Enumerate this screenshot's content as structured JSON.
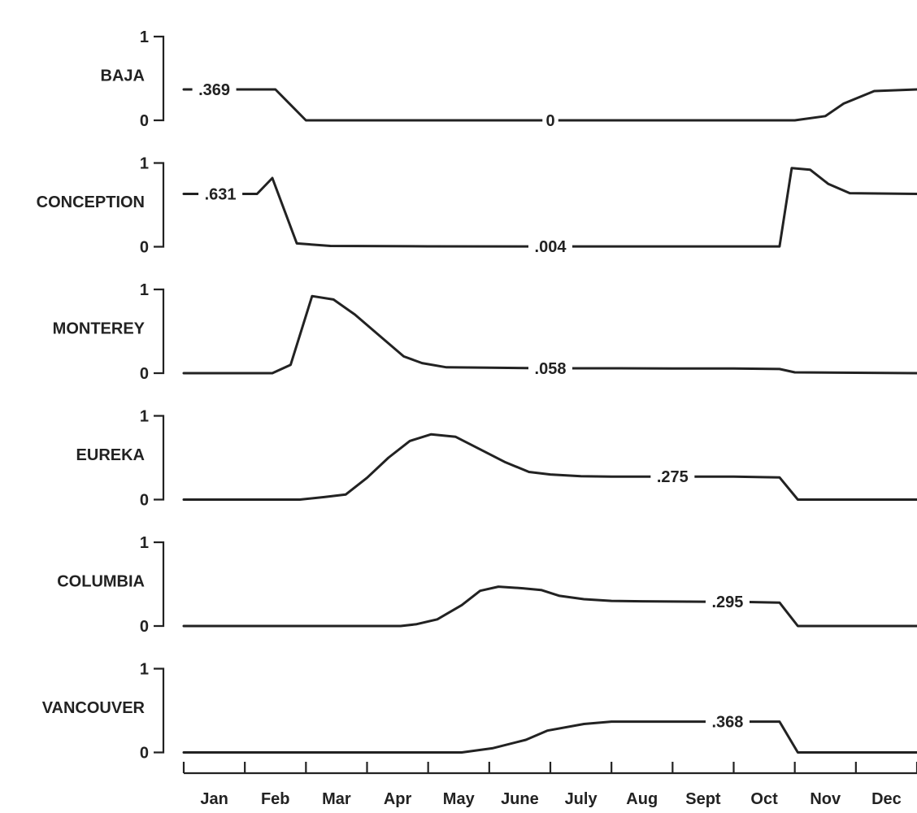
{
  "chart_data": {
    "type": "line",
    "y_ticks": [
      "0",
      "1"
    ],
    "ylim": [
      0,
      1
    ],
    "months": [
      "Jan",
      "Feb",
      "Mar",
      "Apr",
      "May",
      "June",
      "July",
      "Aug",
      "Sept",
      "Oct",
      "Nov",
      "Dec"
    ],
    "series": [
      {
        "name": "BAJA",
        "label": ".369",
        "label_text": ".369",
        "label_month": 0.5,
        "label2_text": "0",
        "label2_month": 6,
        "points": [
          [
            0,
            0.369
          ],
          [
            0.5,
            0.369
          ],
          [
            1,
            0.369
          ],
          [
            1.5,
            0.369
          ],
          [
            2,
            0
          ],
          [
            3,
            0
          ],
          [
            4,
            0
          ],
          [
            5,
            0
          ],
          [
            6,
            0
          ],
          [
            7,
            0
          ],
          [
            8,
            0
          ],
          [
            9,
            0
          ],
          [
            10,
            0
          ],
          [
            10.5,
            0.05
          ],
          [
            10.8,
            0.2
          ],
          [
            11.3,
            0.35
          ],
          [
            12,
            0.369
          ]
        ]
      },
      {
        "name": "CONCEPTION",
        "label_text": ".631",
        "label_month": 0.6,
        "label2_text": ".004",
        "label2_month": 6,
        "points": [
          [
            0,
            0.631
          ],
          [
            1,
            0.631
          ],
          [
            1.2,
            0.631
          ],
          [
            1.45,
            0.82
          ],
          [
            1.85,
            0.04
          ],
          [
            2.4,
            0.01
          ],
          [
            4,
            0.005
          ],
          [
            6,
            0.004
          ],
          [
            8,
            0.004
          ],
          [
            9,
            0.004
          ],
          [
            9.75,
            0.004
          ],
          [
            9.95,
            0.94
          ],
          [
            10.25,
            0.92
          ],
          [
            10.55,
            0.75
          ],
          [
            10.9,
            0.64
          ],
          [
            12,
            0.631
          ]
        ]
      },
      {
        "name": "MONTEREY",
        "label_text": ".058",
        "label_month": 6,
        "points": [
          [
            0,
            0
          ],
          [
            1,
            0
          ],
          [
            1.45,
            0
          ],
          [
            1.75,
            0.1
          ],
          [
            2.1,
            0.92
          ],
          [
            2.45,
            0.88
          ],
          [
            2.8,
            0.7
          ],
          [
            3.2,
            0.45
          ],
          [
            3.6,
            0.2
          ],
          [
            3.9,
            0.12
          ],
          [
            4.3,
            0.07
          ],
          [
            5,
            0.065
          ],
          [
            6,
            0.058
          ],
          [
            7,
            0.058
          ],
          [
            8,
            0.056
          ],
          [
            9,
            0.055
          ],
          [
            9.75,
            0.05
          ],
          [
            10,
            0.01
          ],
          [
            11,
            0.005
          ],
          [
            12,
            0
          ]
        ]
      },
      {
        "name": "EUREKA",
        "label_text": ".275",
        "label_month": 8,
        "points": [
          [
            0,
            0
          ],
          [
            1,
            0
          ],
          [
            1.9,
            0
          ],
          [
            2.3,
            0.03
          ],
          [
            2.65,
            0.06
          ],
          [
            3,
            0.26
          ],
          [
            3.35,
            0.5
          ],
          [
            3.7,
            0.7
          ],
          [
            4.05,
            0.78
          ],
          [
            4.45,
            0.75
          ],
          [
            4.85,
            0.6
          ],
          [
            5.25,
            0.45
          ],
          [
            5.65,
            0.33
          ],
          [
            6,
            0.3
          ],
          [
            6.5,
            0.28
          ],
          [
            7,
            0.275
          ],
          [
            8,
            0.275
          ],
          [
            9,
            0.275
          ],
          [
            9.75,
            0.265
          ],
          [
            10.05,
            0
          ],
          [
            11,
            0
          ],
          [
            12,
            0
          ]
        ]
      },
      {
        "name": "COLUMBIA",
        "label_text": ".295",
        "label_month": 8.9,
        "points": [
          [
            0,
            0
          ],
          [
            2,
            0
          ],
          [
            3.55,
            0
          ],
          [
            3.8,
            0.02
          ],
          [
            4.15,
            0.08
          ],
          [
            4.55,
            0.25
          ],
          [
            4.85,
            0.42
          ],
          [
            5.15,
            0.47
          ],
          [
            5.55,
            0.45
          ],
          [
            5.85,
            0.43
          ],
          [
            6.15,
            0.36
          ],
          [
            6.55,
            0.32
          ],
          [
            7,
            0.3
          ],
          [
            7.5,
            0.295
          ],
          [
            8.5,
            0.29
          ],
          [
            9,
            0.29
          ],
          [
            9.75,
            0.28
          ],
          [
            10.05,
            0
          ],
          [
            11,
            0
          ],
          [
            12,
            0
          ]
        ]
      },
      {
        "name": "VANCOUVER",
        "label_text": ".368",
        "label_month": 8.9,
        "points": [
          [
            0,
            0
          ],
          [
            2,
            0
          ],
          [
            4,
            0
          ],
          [
            4.55,
            0
          ],
          [
            5.05,
            0.05
          ],
          [
            5.6,
            0.15
          ],
          [
            5.95,
            0.26
          ],
          [
            6.55,
            0.34
          ],
          [
            7,
            0.368
          ],
          [
            8,
            0.368
          ],
          [
            8.5,
            0.368
          ],
          [
            9,
            0.368
          ],
          [
            9.75,
            0.368
          ],
          [
            10.05,
            0
          ],
          [
            11,
            0
          ],
          [
            12,
            0
          ]
        ]
      }
    ]
  }
}
